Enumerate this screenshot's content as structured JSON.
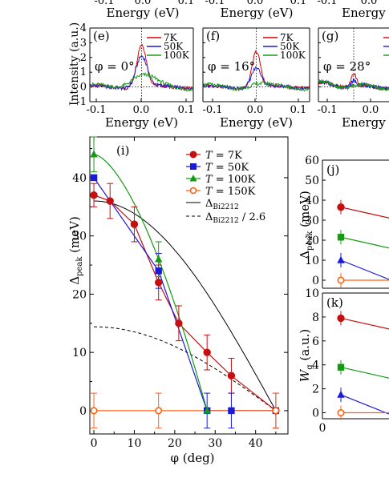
{
  "chart_data": [
    {
      "panel": "(e)",
      "type": "line",
      "xlabel": "Energy (eV)",
      "ylabel": "Intensity (a.u.)",
      "xlim": [
        -0.13,
        0.13
      ],
      "ylim": [
        -1,
        4
      ],
      "xticks": [
        "-0.1",
        "0.0",
        "0.1"
      ],
      "yticks": [
        "-1",
        "0",
        "1",
        "2",
        "3",
        "4"
      ],
      "annotation": "φ = 0°",
      "legend_position": "top-right",
      "series": [
        {
          "name": "7K",
          "color": "#e00000",
          "peak": 2.9,
          "width": 0.012
        },
        {
          "name": "50K",
          "color": "#1a1ad8",
          "peak": 2.1,
          "width": 0.014
        },
        {
          "name": "100K",
          "color": "#1a9a1a",
          "peak": 0.8,
          "width": 0.03
        }
      ]
    },
    {
      "panel": "(f)",
      "type": "line",
      "xlabel": "Energy (eV)",
      "xlim": [
        -0.13,
        0.13
      ],
      "ylim": [
        -1,
        4
      ],
      "xticks": [
        "-0.1",
        "0.0",
        "0.1"
      ],
      "annotation": "φ = 16°",
      "legend_position": "top-right",
      "series": [
        {
          "name": "7K",
          "color": "#e00000",
          "peak": 2.4,
          "width": 0.01
        },
        {
          "name": "50K",
          "color": "#1a1ad8",
          "peak": 1.3,
          "width": 0.012
        },
        {
          "name": "100K",
          "color": "#1a9a1a",
          "peak": 0.2,
          "width": 0.02
        }
      ]
    },
    {
      "panel": "(g)",
      "type": "line",
      "xlabel": "Energy (e",
      "xlim": [
        -0.13,
        0.13
      ],
      "ylim": [
        -1,
        4
      ],
      "xticks": [
        "-0.1",
        "0.0"
      ],
      "annotation": "φ = 28°",
      "series": [
        {
          "color": "#e00000",
          "peak": 0.9,
          "width": 0.01
        },
        {
          "color": "#1a1ad8",
          "peak": 0.4,
          "width": 0.012
        },
        {
          "color": "#1a9a1a",
          "peak": 0.1,
          "width": 0.02
        }
      ]
    },
    {
      "panel": "(i)",
      "type": "scatter",
      "xlabel": "φ (deg)",
      "ylabel": "Δpeak (meV)",
      "xlim": [
        -1,
        48
      ],
      "ylim": [
        -4,
        47
      ],
      "xticks": [
        0,
        10,
        20,
        30,
        40
      ],
      "yticks": [
        0,
        10,
        20,
        30,
        40
      ],
      "legend_position": "top-right",
      "series": [
        {
          "name": "T = 7K",
          "label": "= 7K",
          "color": "#c41010",
          "marker": "circle",
          "x": [
            0,
            4,
            10,
            16,
            21,
            28,
            34,
            45
          ],
          "y": [
            37,
            36,
            32,
            22,
            15,
            10,
            6,
            0
          ],
          "err": [
            2,
            3,
            3,
            3,
            3,
            3,
            3,
            0
          ]
        },
        {
          "name": "T = 50K",
          "label": "= 50K",
          "color": "#1a1ad8",
          "marker": "square",
          "x": [
            0,
            16,
            28,
            34,
            45
          ],
          "y": [
            40,
            24,
            0,
            0,
            0
          ],
          "err": [
            0,
            3,
            3,
            3,
            3
          ]
        },
        {
          "name": "T = 100K",
          "label": "= 100K",
          "color": "#159a15",
          "marker": "triangle",
          "x": [
            0,
            16,
            28
          ],
          "y": [
            44,
            26,
            0
          ],
          "err": [
            3,
            3,
            0
          ]
        },
        {
          "name": "T = 150K",
          "label": "= 150K",
          "color": "#ff6010",
          "marker": "open-circle",
          "x": [
            0,
            16,
            45
          ],
          "y": [
            0,
            0,
            0
          ],
          "err": [
            3,
            3,
            3
          ]
        }
      ],
      "reference_curves": [
        {
          "name": "Δ_Bi2212",
          "sym": "Δ",
          "sub": "Bi2212",
          "suffix": "",
          "style": "solid",
          "amplitude": 36
        },
        {
          "name": "Δ_Bi2212 / 2.6",
          "sym": "Δ",
          "sub": "Bi2212",
          "suffix": " / 2.6",
          "style": "dashed",
          "amplitude": 14.4
        }
      ]
    },
    {
      "panel": "(j)",
      "type": "scatter",
      "ylabel": "Δpeak (meV)",
      "ylim": [
        -4,
        60
      ],
      "yticks": [
        0,
        10,
        20,
        30,
        40,
        50,
        60
      ],
      "series": [
        {
          "color": "#c41010",
          "marker": "circle",
          "y": 36.5
        },
        {
          "color": "#159a15",
          "marker": "square",
          "y": 21.5
        },
        {
          "color": "#1a1ad8",
          "marker": "triangle",
          "y": 10
        },
        {
          "color": "#ff6010",
          "marker": "open-circle",
          "y": 0
        }
      ]
    },
    {
      "panel": "(k)",
      "type": "scatter",
      "ylabel": "W g (a.u.)",
      "ylim": [
        -0.5,
        10
      ],
      "yticks": [
        0,
        2,
        4,
        6,
        8,
        10
      ],
      "xticks": [
        0
      ],
      "series": [
        {
          "color": "#c41010",
          "marker": "circle",
          "y": 7.9
        },
        {
          "color": "#159a15",
          "marker": "square",
          "y": 3.8
        },
        {
          "color": "#1a1ad8",
          "marker": "triangle",
          "y": 1.5
        },
        {
          "color": "#ff6010",
          "marker": "open-circle",
          "y": 0
        }
      ]
    }
  ],
  "top_strip": {
    "ticks": [
      "-0.1",
      "0.0",
      "0.1",
      "-0.1",
      "0.0",
      "0.1",
      "-0.1",
      "0.0"
    ],
    "labels": [
      "Energy (eV)",
      "Energy (eV)",
      "Energy (e"
    ]
  },
  "labels": {
    "intensity_ylabel": "Intensity (a.u.)",
    "delta_ylabel_main": "Δ",
    "delta_ylabel_sub": "peak",
    "delta_ylabel_unit": " (meV)",
    "wg_main": "W",
    "wg_sub": "g",
    "wg_unit": " (a.u.)",
    "phi_xlabel": "φ  (deg)",
    "legend_T": "T"
  }
}
